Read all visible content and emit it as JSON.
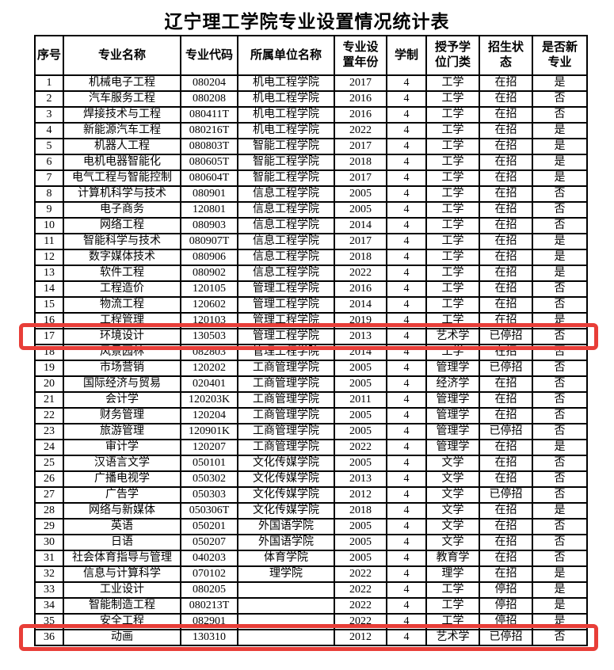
{
  "title": "辽宁理工学院专业设置情况统计表",
  "accent_red": "#e83e38",
  "table": {
    "columns": [
      {
        "key": "index",
        "label": "序号"
      },
      {
        "key": "major_name",
        "label": "专业名称"
      },
      {
        "key": "major_code",
        "label": "专业代码"
      },
      {
        "key": "unit_name",
        "label": "所属单位名称"
      },
      {
        "key": "setup_year",
        "label": "专业设\n置年份"
      },
      {
        "key": "duration",
        "label": "学制"
      },
      {
        "key": "degree_category",
        "label": "授予学\n位门类"
      },
      {
        "key": "enroll_status",
        "label": "招生状\n态"
      },
      {
        "key": "is_new_major",
        "label": "是否新\n专业"
      }
    ],
    "rows": [
      [
        "1",
        "机械电子工程",
        "080204",
        "机电工程学院",
        "2017",
        "4",
        "工学",
        "在招",
        "是"
      ],
      [
        "2",
        "汽车服务工程",
        "080208",
        "机电工程学院",
        "2016",
        "4",
        "工学",
        "在招",
        "否"
      ],
      [
        "3",
        "焊接技术与工程",
        "080411T",
        "机电工程学院",
        "2016",
        "4",
        "工学",
        "在招",
        "否"
      ],
      [
        "4",
        "新能源汽车工程",
        "080216T",
        "机电工程学院",
        "2022",
        "4",
        "工学",
        "在招",
        "是"
      ],
      [
        "5",
        "机器人工程",
        "080803T",
        "智能工程学院",
        "2017",
        "4",
        "工学",
        "在招",
        "是"
      ],
      [
        "6",
        "电机电器智能化",
        "080605T",
        "智能工程学院",
        "2018",
        "4",
        "工学",
        "在招",
        "是"
      ],
      [
        "7",
        "电气工程与智能控制",
        "080604T",
        "智能工程学院",
        "2017",
        "4",
        "工学",
        "在招",
        "是"
      ],
      [
        "8",
        "计算机科学与技术",
        "080901",
        "信息工程学院",
        "2005",
        "4",
        "工学",
        "在招",
        "否"
      ],
      [
        "9",
        "电子商务",
        "120801",
        "信息工程学院",
        "2005",
        "4",
        "工学",
        "在招",
        "否"
      ],
      [
        "10",
        "网络工程",
        "080903",
        "信息工程学院",
        "2014",
        "4",
        "工学",
        "在招",
        "否"
      ],
      [
        "11",
        "智能科学与技术",
        "080907T",
        "信息工程学院",
        "2017",
        "4",
        "工学",
        "在招",
        "是"
      ],
      [
        "12",
        "数字媒体技术",
        "080906",
        "信息工程学院",
        "2018",
        "4",
        "工学",
        "在招",
        "是"
      ],
      [
        "13",
        "软件工程",
        "080902",
        "信息工程学院",
        "2022",
        "4",
        "工学",
        "在招",
        "是"
      ],
      [
        "14",
        "工程造价",
        "120105",
        "管理工程学院",
        "2016",
        "4",
        "工学",
        "在招",
        "否"
      ],
      [
        "15",
        "物流工程",
        "120602",
        "管理工程学院",
        "2014",
        "4",
        "工学",
        "在招",
        "否"
      ],
      [
        "16",
        "工程管理",
        "120103",
        "管理工程学院",
        "2019",
        "4",
        "工学",
        "在招",
        "是"
      ],
      [
        "17",
        "环境设计",
        "130503",
        "管理工程学院",
        "2013",
        "4",
        "艺术学",
        "已停招",
        "否"
      ],
      [
        "18",
        "风景园林",
        "082803",
        "管理工程学院",
        "2014",
        "4",
        "工学",
        "在招",
        "否"
      ],
      [
        "19",
        "市场营销",
        "120202",
        "工商管理学院",
        "2005",
        "4",
        "管理学",
        "已停招",
        "否"
      ],
      [
        "20",
        "国际经济与贸易",
        "020401",
        "工商管理学院",
        "2005",
        "4",
        "经济学",
        "在招",
        "否"
      ],
      [
        "21",
        "会计学",
        "120203K",
        "工商管理学院",
        "2011",
        "4",
        "管理学",
        "在招",
        "否"
      ],
      [
        "22",
        "财务管理",
        "120204",
        "工商管理学院",
        "2005",
        "4",
        "管理学",
        "在招",
        "否"
      ],
      [
        "23",
        "旅游管理",
        "120901K",
        "工商管理学院",
        "2005",
        "4",
        "管理学",
        "已停招",
        "否"
      ],
      [
        "24",
        "审计学",
        "120207",
        "工商管理学院",
        "2022",
        "4",
        "管理学",
        "在招",
        "是"
      ],
      [
        "25",
        "汉语言文学",
        "050101",
        "文化传媒学院",
        "2005",
        "4",
        "文学",
        "在招",
        "否"
      ],
      [
        "26",
        "广播电视学",
        "050302",
        "文化传媒学院",
        "2013",
        "4",
        "文学",
        "在招",
        "否"
      ],
      [
        "27",
        "广告学",
        "050303",
        "文化传媒学院",
        "2012",
        "4",
        "文学",
        "已停招",
        "否"
      ],
      [
        "28",
        "网络与新媒体",
        "050306T",
        "文化传媒学院",
        "2018",
        "4",
        "文学",
        "在招",
        "是"
      ],
      [
        "29",
        "英语",
        "050201",
        "外国语学院",
        "2005",
        "4",
        "文学",
        "在招",
        "否"
      ],
      [
        "30",
        "日语",
        "050207",
        "外国语学院",
        "2005",
        "4",
        "文学",
        "在招",
        "否"
      ],
      [
        "31",
        "社会体育指导与管理",
        "040203",
        "体育学院",
        "2005",
        "4",
        "教育学",
        "在招",
        "否"
      ],
      [
        "32",
        "信息与计算科学",
        "070102",
        "理学院",
        "2022",
        "4",
        "理学",
        "在招",
        "是"
      ],
      [
        "33",
        "工业设计",
        "080205",
        "",
        "2022",
        "4",
        "工学",
        "停招",
        "是"
      ],
      [
        "34",
        "智能制造工程",
        "080213T",
        "",
        "2022",
        "4",
        "工学",
        "停招",
        "是"
      ],
      [
        "35",
        "安全工程",
        "082901",
        "",
        "2022",
        "4",
        "工学",
        "停招",
        "是"
      ],
      [
        "36",
        "动画",
        "130310",
        "",
        "2012",
        "4",
        "艺术学",
        "已停招",
        "否"
      ]
    ],
    "highlighted_row_indexes": [
      17,
      36
    ]
  }
}
